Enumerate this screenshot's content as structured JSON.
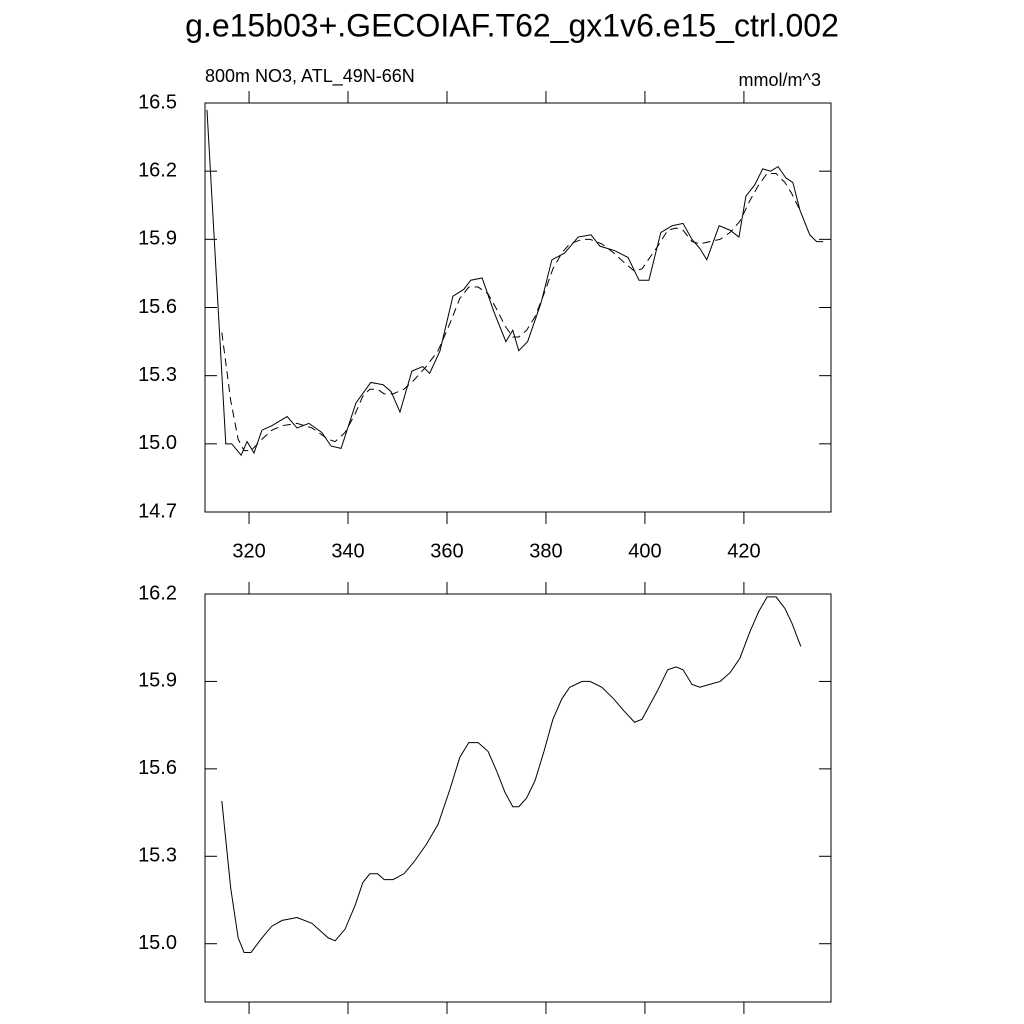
{
  "title": "g.e15b03+.GECOIAF.T62_gx1v6.e15_ctrl.002",
  "chart_data": [
    {
      "type": "line",
      "subtitle_left": "800m NO3, ATL_49N-66N",
      "subtitle_right": "mmol/m^3",
      "xlim": [
        311.1,
        437.6
      ],
      "xticks": [
        320,
        340,
        360,
        380,
        400,
        420
      ],
      "ylim": [
        14.7,
        16.5
      ],
      "yticks": [
        14.7,
        {
          "value": 15.0,
          "label": "15.0"
        },
        15.3,
        15.6,
        15.9,
        16.2,
        16.5
      ],
      "series": [
        {
          "color": "#000000",
          "dash": false,
          "x": [
            311.5,
            315.3,
            316.5,
            318.4,
            319.6,
            321,
            322.6,
            324.6,
            327.7,
            329.7,
            332.1,
            334.7,
            336.6,
            338.6,
            341.6,
            344.6,
            347.1,
            348.7,
            350.5,
            352.9,
            355.1,
            356.5,
            358.6,
            361.2,
            363.4,
            364.8,
            367.1,
            369.5,
            371.9,
            373.3,
            374.5,
            376.3,
            379,
            381.2,
            383.8,
            386.5,
            389.1,
            390.9,
            393.9,
            396.6,
            398.8,
            400.8,
            403.2,
            405.5,
            407.7,
            409.5,
            411.1,
            412.5,
            415,
            417.2,
            419,
            420.4,
            422.2,
            423.8,
            425.4,
            426.9,
            428.5,
            429.9,
            431.3,
            433.3,
            434.7,
            436
          ],
          "values": [
            16.47,
            15.0,
            15.0,
            14.95,
            15.01,
            14.96,
            15.06,
            15.08,
            15.12,
            15.07,
            15.09,
            15.05,
            14.99,
            14.98,
            15.18,
            15.27,
            15.26,
            15.23,
            15.14,
            15.32,
            15.34,
            15.31,
            15.41,
            15.65,
            15.68,
            15.72,
            15.73,
            15.58,
            15.45,
            15.5,
            15.41,
            15.45,
            15.62,
            15.81,
            15.84,
            15.91,
            15.92,
            15.87,
            15.85,
            15.82,
            15.72,
            15.72,
            15.93,
            15.96,
            15.97,
            15.9,
            15.86,
            15.81,
            15.96,
            15.94,
            15.91,
            16.09,
            16.14,
            16.21,
            16.2,
            16.22,
            16.17,
            16.15,
            16.03,
            15.92,
            15.89,
            15.89
          ]
        },
        {
          "color": "#000000",
          "dash": true,
          "x": [
            314.5,
            316.3,
            317.8,
            319,
            320.4,
            322.6,
            324.6,
            326.7,
            329.7,
            332.7,
            336,
            337.4,
            339.4,
            341.4,
            343,
            344.4,
            346,
            347.3,
            349.1,
            351.3,
            353.3,
            355.8,
            358.2,
            360.6,
            362.6,
            364.4,
            366.3,
            368.3,
            370.1,
            371.7,
            373.3,
            374.5,
            376.1,
            377.8,
            379.6,
            381.4,
            383.2,
            384.8,
            387.3,
            388.9,
            391.3,
            393.7,
            395.7,
            397.9,
            399.4,
            401,
            402.6,
            404.6,
            406.3,
            407.7,
            409.5,
            411.1,
            413.1,
            415.2,
            417.2,
            419.2,
            421.2,
            423,
            424.7,
            426.5,
            428.3,
            429.7,
            431.5
          ],
          "values": [
            15.49,
            15.19,
            15.02,
            14.97,
            14.97,
            15.02,
            15.06,
            15.08,
            15.09,
            15.07,
            15.02,
            15.01,
            15.05,
            15.13,
            15.21,
            15.24,
            15.24,
            15.22,
            15.22,
            15.24,
            15.28,
            15.34,
            15.41,
            15.53,
            15.64,
            15.69,
            15.69,
            15.66,
            15.59,
            15.52,
            15.47,
            15.47,
            15.5,
            15.56,
            15.66,
            15.77,
            15.84,
            15.88,
            15.9,
            15.9,
            15.88,
            15.84,
            15.8,
            15.76,
            15.77,
            15.82,
            15.87,
            15.94,
            15.95,
            15.94,
            15.89,
            15.88,
            15.89,
            15.9,
            15.93,
            15.98,
            16.07,
            16.14,
            16.19,
            16.19,
            16.15,
            16.1,
            16.02
          ]
        }
      ]
    },
    {
      "type": "line",
      "xtick_labels": false,
      "xlim": [
        311.1,
        437.6
      ],
      "xticks": [
        320,
        340,
        360,
        380,
        400,
        420
      ],
      "ylim": [
        14.8,
        16.2
      ],
      "yticks": [
        {
          "value": 15.0,
          "label": "15.0"
        },
        15.3,
        15.6,
        15.9,
        16.2
      ],
      "series": [
        {
          "color": "#000000",
          "dash": false,
          "x": [
            314.5,
            316.3,
            317.8,
            319,
            320.4,
            322.6,
            324.6,
            326.7,
            329.7,
            332.7,
            336,
            337.4,
            339.4,
            341.4,
            343,
            344.4,
            346,
            347.3,
            349.1,
            351.3,
            353.3,
            355.8,
            358.2,
            360.6,
            362.6,
            364.4,
            366.3,
            368.3,
            370.1,
            371.7,
            373.3,
            374.5,
            376.1,
            377.8,
            379.6,
            381.4,
            383.2,
            384.8,
            387.3,
            388.9,
            391.3,
            393.7,
            395.7,
            397.9,
            399.4,
            401,
            402.6,
            404.6,
            406.3,
            407.7,
            409.5,
            411.1,
            413.1,
            415.2,
            417.2,
            419.2,
            421.2,
            423,
            424.7,
            426.5,
            428.3,
            429.7,
            431.5
          ],
          "values": [
            15.49,
            15.19,
            15.02,
            14.97,
            14.97,
            15.02,
            15.06,
            15.08,
            15.09,
            15.07,
            15.02,
            15.01,
            15.05,
            15.13,
            15.21,
            15.24,
            15.24,
            15.22,
            15.22,
            15.24,
            15.28,
            15.34,
            15.41,
            15.53,
            15.64,
            15.69,
            15.69,
            15.66,
            15.59,
            15.52,
            15.47,
            15.47,
            15.5,
            15.56,
            15.66,
            15.77,
            15.84,
            15.88,
            15.9,
            15.9,
            15.88,
            15.84,
            15.8,
            15.76,
            15.77,
            15.82,
            15.87,
            15.94,
            15.95,
            15.94,
            15.89,
            15.88,
            15.89,
            15.9,
            15.93,
            15.98,
            16.07,
            16.14,
            16.19,
            16.19,
            16.15,
            16.1,
            16.02
          ]
        }
      ]
    }
  ]
}
